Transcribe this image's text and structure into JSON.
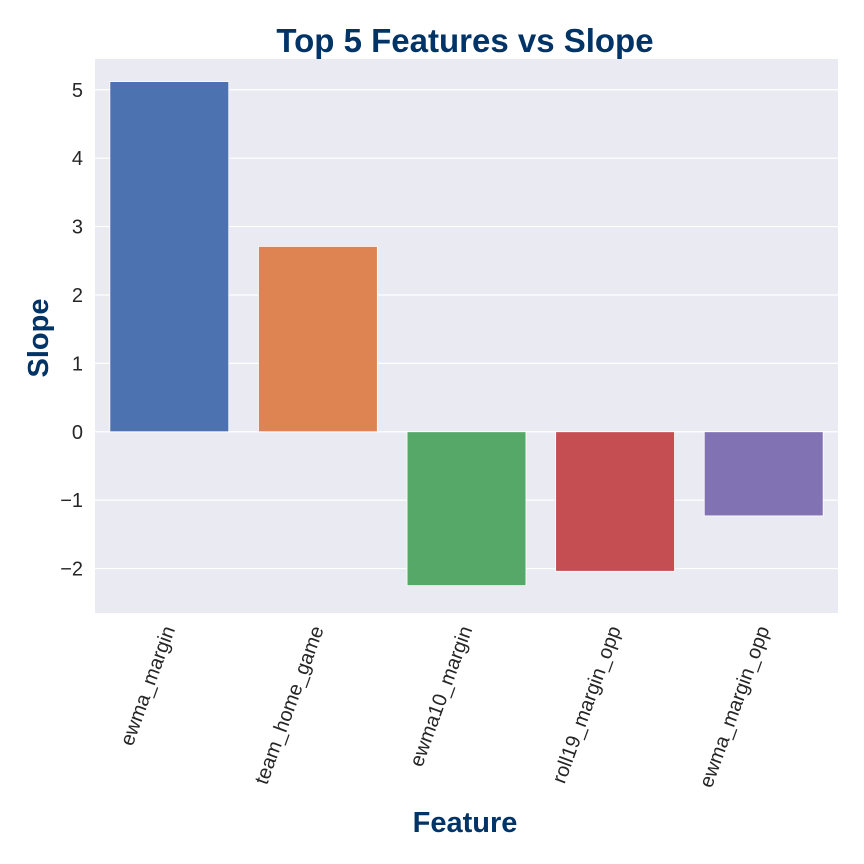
{
  "chart_data": {
    "type": "bar",
    "title": "Top 5 Features vs Slope",
    "xlabel": "Feature",
    "ylabel": "Slope",
    "categories": [
      "ewma_margin",
      "team_home_game",
      "ewma10_margin",
      "roll19_margin_opp",
      "ewma_margin_opp"
    ],
    "values": [
      5.12,
      2.71,
      -2.25,
      -2.04,
      -1.23
    ],
    "ylim": [
      -2.65,
      5.45
    ],
    "yticks": [
      5,
      4,
      3,
      2,
      1,
      0,
      -1,
      -2
    ],
    "ytick_labels": [
      "5",
      "4",
      "3",
      "2",
      "1",
      "0",
      "−1",
      "−2"
    ],
    "bar_colors": [
      "#4c72b0",
      "#dd8452",
      "#55a868",
      "#c44e52",
      "#8172b3"
    ],
    "grid": true,
    "background_color": "#eaeaf2",
    "title_color": "#003366",
    "x_tick_rotation_deg": 70
  }
}
